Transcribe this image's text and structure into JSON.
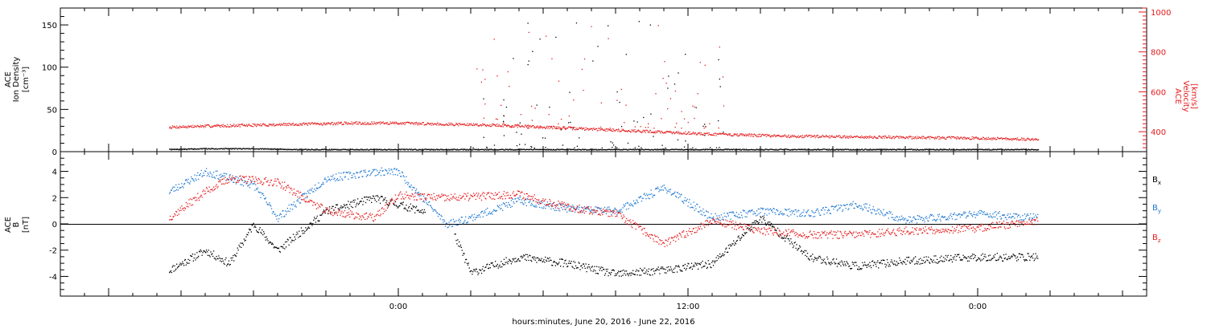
{
  "chart_data": [
    {
      "type": "scatter",
      "panel": "top",
      "ylabel_left": [
        "ACE",
        "Ion Density",
        "[cm⁻³]"
      ],
      "ylabel_right": [
        "ACE",
        "Velocity",
        "[km/s]"
      ],
      "ylim_left": [
        0,
        170
      ],
      "yticks_left": [
        0,
        50,
        100,
        150
      ],
      "ylim_right": [
        300,
        1020
      ],
      "yticks_right": [
        400,
        600,
        800,
        1000
      ],
      "colors": {
        "density": "#000000",
        "velocity": "#e41a1c"
      },
      "series": [
        {
          "name": "Ion Density",
          "axis": "left",
          "x_hours": [
            -9.5,
            -8,
            -6,
            -4,
            -2,
            0,
            2,
            4,
            6,
            8,
            10,
            12,
            13,
            16,
            20,
            24,
            26.5
          ],
          "values": [
            3,
            4,
            4,
            3,
            3,
            3,
            3,
            3,
            3,
            3,
            3,
            3,
            3,
            3,
            3,
            3,
            3
          ]
        },
        {
          "name": "Velocity",
          "axis": "right",
          "x_hours": [
            -9.5,
            -8,
            -6,
            -4,
            -2,
            0,
            2,
            4,
            6,
            8,
            10,
            12,
            13,
            16,
            20,
            24,
            26.5
          ],
          "values": [
            425,
            430,
            435,
            440,
            445,
            445,
            440,
            435,
            425,
            415,
            405,
            395,
            390,
            380,
            375,
            370,
            362
          ]
        }
      ]
    },
    {
      "type": "scatter",
      "panel": "bottom",
      "ylabel_left": [
        "ACE",
        "B",
        "[nT]"
      ],
      "ylim": [
        -5.5,
        5.5
      ],
      "yticks": [
        -4,
        -2,
        0,
        2,
        4
      ],
      "legend_position": "right",
      "legend": [
        {
          "main": "B",
          "sub": "x",
          "color": "#000000"
        },
        {
          "main": "B",
          "sub": "y",
          "color": "#1f78d1"
        },
        {
          "main": "B",
          "sub": "z",
          "color": "#e41a1c"
        }
      ],
      "series": [
        {
          "name": "Bx",
          "color": "#000000",
          "x_hours": [
            -9.5,
            -8,
            -7,
            -6,
            -5,
            -3,
            -1,
            0,
            2,
            3,
            5,
            7,
            9,
            11,
            13,
            15,
            17,
            19,
            21,
            24,
            26.5
          ],
          "values": [
            -3.5,
            -2,
            -3,
            0,
            -2,
            1,
            2,
            1.5,
            0.5,
            -3.7,
            -2.5,
            -3,
            -3.8,
            -3.5,
            -3,
            0.5,
            -2.5,
            -3.2,
            -2.8,
            -2.5,
            -2.5
          ]
        },
        {
          "name": "By",
          "color": "#1f78d1",
          "x_hours": [
            -9.5,
            -8,
            -6,
            -5,
            -3,
            -1,
            0,
            2,
            3,
            5,
            7,
            9,
            11,
            13,
            15,
            17,
            19,
            21,
            24,
            26.5
          ],
          "values": [
            2.5,
            4,
            3,
            0.5,
            3.5,
            4,
            4,
            0,
            0.5,
            1.8,
            1.2,
            1,
            2.8,
            0.5,
            1,
            0.8,
            1.5,
            0.3,
            0.8,
            0.5
          ]
        },
        {
          "name": "Bz",
          "color": "#e41a1c",
          "x_hours": [
            -9.5,
            -8,
            -7,
            -5,
            -3,
            -1,
            0,
            2,
            3,
            5,
            7,
            9,
            11,
            13,
            15,
            17,
            19,
            21,
            24,
            26.5
          ],
          "values": [
            0.5,
            2.5,
            3.5,
            3.2,
            1,
            0.5,
            2.2,
            2,
            2.1,
            2.3,
            1.3,
            0.8,
            -1.5,
            0.3,
            -0.5,
            -0.8,
            -0.8,
            -0.5,
            -0.3,
            0.3
          ]
        }
      ]
    }
  ],
  "x_axis": {
    "xlim_hours": [
      -14,
      31
    ],
    "tick_labels": [
      {
        "label": "0:00",
        "hour": 0
      },
      {
        "label": "12:00",
        "hour": 12
      },
      {
        "label": "0:00",
        "hour": 24
      }
    ],
    "xlabel": "hours:minutes, June 20, 2016 - June 22, 2016"
  }
}
